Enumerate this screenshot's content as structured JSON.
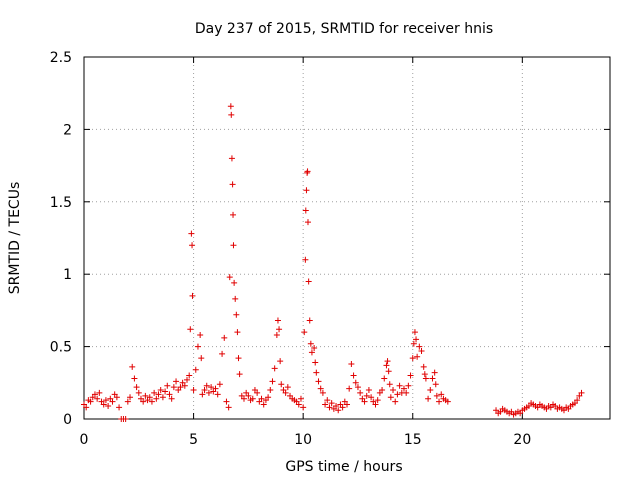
{
  "chart_data": {
    "type": "scatter",
    "title": "Day 237 of 2015, SRMTID for receiver hnis",
    "xlabel": "GPS time / hours",
    "ylabel": "SRMTID / TECUs",
    "xlim": [
      0,
      24
    ],
    "ylim": [
      0,
      2.5
    ],
    "grid": true,
    "marker": "+",
    "marker_color": "#e00000",
    "xticks": [
      0,
      5,
      10,
      15,
      20
    ],
    "xtick_labels": [
      "0",
      "5",
      "10",
      "15",
      "20"
    ],
    "yticks": [
      0,
      0.5,
      1,
      1.5,
      2,
      2.5
    ],
    "ytick_labels": [
      "0",
      "0.5",
      "1",
      "1.5",
      "2",
      "2.5"
    ],
    "series": [
      {
        "name": "SRMTID",
        "points": [
          [
            0.0,
            0.1
          ],
          [
            0.1,
            0.08
          ],
          [
            0.2,
            0.13
          ],
          [
            0.3,
            0.12
          ],
          [
            0.4,
            0.15
          ],
          [
            0.5,
            0.17
          ],
          [
            0.6,
            0.14
          ],
          [
            0.7,
            0.18
          ],
          [
            0.8,
            0.12
          ],
          [
            0.9,
            0.1
          ],
          [
            1.0,
            0.13
          ],
          [
            1.1,
            0.09
          ],
          [
            1.2,
            0.14
          ],
          [
            1.3,
            0.12
          ],
          [
            1.4,
            0.17
          ],
          [
            1.5,
            0.15
          ],
          [
            1.6,
            0.08
          ],
          [
            1.7,
            0.0
          ],
          [
            1.8,
            0.0
          ],
          [
            1.9,
            0.0
          ],
          [
            2.0,
            0.12
          ],
          [
            2.1,
            0.15
          ],
          [
            2.2,
            0.36
          ],
          [
            2.3,
            0.28
          ],
          [
            2.4,
            0.22
          ],
          [
            2.5,
            0.18
          ],
          [
            2.6,
            0.14
          ],
          [
            2.7,
            0.12
          ],
          [
            2.8,
            0.16
          ],
          [
            2.9,
            0.13
          ],
          [
            3.0,
            0.15
          ],
          [
            3.1,
            0.12
          ],
          [
            3.2,
            0.18
          ],
          [
            3.3,
            0.14
          ],
          [
            3.4,
            0.17
          ],
          [
            3.5,
            0.2
          ],
          [
            3.6,
            0.15
          ],
          [
            3.7,
            0.19
          ],
          [
            3.8,
            0.23
          ],
          [
            3.9,
            0.17
          ],
          [
            4.0,
            0.14
          ],
          [
            4.1,
            0.22
          ],
          [
            4.2,
            0.26
          ],
          [
            4.3,
            0.2
          ],
          [
            4.4,
            0.22
          ],
          [
            4.5,
            0.25
          ],
          [
            4.6,
            0.23
          ],
          [
            4.7,
            0.27
          ],
          [
            4.8,
            0.3
          ],
          [
            4.85,
            0.62
          ],
          [
            4.9,
            1.28
          ],
          [
            4.93,
            1.2
          ],
          [
            4.95,
            0.85
          ],
          [
            5.0,
            0.2
          ],
          [
            5.1,
            0.34
          ],
          [
            5.2,
            0.5
          ],
          [
            5.3,
            0.58
          ],
          [
            5.35,
            0.42
          ],
          [
            5.4,
            0.17
          ],
          [
            5.5,
            0.2
          ],
          [
            5.6,
            0.23
          ],
          [
            5.7,
            0.18
          ],
          [
            5.8,
            0.22
          ],
          [
            5.9,
            0.19
          ],
          [
            6.0,
            0.21
          ],
          [
            6.1,
            0.17
          ],
          [
            6.2,
            0.24
          ],
          [
            6.3,
            0.45
          ],
          [
            6.4,
            0.56
          ],
          [
            6.5,
            0.12
          ],
          [
            6.6,
            0.08
          ],
          [
            6.65,
            0.98
          ],
          [
            6.7,
            2.16
          ],
          [
            6.72,
            2.1
          ],
          [
            6.75,
            1.8
          ],
          [
            6.78,
            1.62
          ],
          [
            6.8,
            1.41
          ],
          [
            6.82,
            1.2
          ],
          [
            6.85,
            0.94
          ],
          [
            6.9,
            0.83
          ],
          [
            6.95,
            0.72
          ],
          [
            7.0,
            0.6
          ],
          [
            7.05,
            0.42
          ],
          [
            7.1,
            0.31
          ],
          [
            7.2,
            0.16
          ],
          [
            7.3,
            0.14
          ],
          [
            7.4,
            0.18
          ],
          [
            7.5,
            0.16
          ],
          [
            7.6,
            0.13
          ],
          [
            7.7,
            0.14
          ],
          [
            7.8,
            0.2
          ],
          [
            7.9,
            0.18
          ],
          [
            8.0,
            0.12
          ],
          [
            8.1,
            0.14
          ],
          [
            8.2,
            0.1
          ],
          [
            8.3,
            0.13
          ],
          [
            8.4,
            0.15
          ],
          [
            8.5,
            0.2
          ],
          [
            8.6,
            0.26
          ],
          [
            8.7,
            0.35
          ],
          [
            8.8,
            0.58
          ],
          [
            8.85,
            0.68
          ],
          [
            8.9,
            0.62
          ],
          [
            8.95,
            0.4
          ],
          [
            9.0,
            0.24
          ],
          [
            9.1,
            0.2
          ],
          [
            9.2,
            0.18
          ],
          [
            9.3,
            0.22
          ],
          [
            9.4,
            0.16
          ],
          [
            9.5,
            0.14
          ],
          [
            9.6,
            0.13
          ],
          [
            9.7,
            0.12
          ],
          [
            9.8,
            0.1
          ],
          [
            9.9,
            0.14
          ],
          [
            10.0,
            0.08
          ],
          [
            10.05,
            0.6
          ],
          [
            10.1,
            1.1
          ],
          [
            10.12,
            1.44
          ],
          [
            10.15,
            1.58
          ],
          [
            10.18,
            1.7
          ],
          [
            10.2,
            1.71
          ],
          [
            10.22,
            1.36
          ],
          [
            10.25,
            0.95
          ],
          [
            10.3,
            0.68
          ],
          [
            10.35,
            0.52
          ],
          [
            10.4,
            0.46
          ],
          [
            10.5,
            0.49
          ],
          [
            10.55,
            0.39
          ],
          [
            10.6,
            0.32
          ],
          [
            10.7,
            0.26
          ],
          [
            10.8,
            0.21
          ],
          [
            10.9,
            0.18
          ],
          [
            11.0,
            0.1
          ],
          [
            11.1,
            0.13
          ],
          [
            11.2,
            0.08
          ],
          [
            11.3,
            0.11
          ],
          [
            11.4,
            0.07
          ],
          [
            11.5,
            0.09
          ],
          [
            11.6,
            0.06
          ],
          [
            11.7,
            0.1
          ],
          [
            11.8,
            0.08
          ],
          [
            11.9,
            0.12
          ],
          [
            12.0,
            0.1
          ],
          [
            12.1,
            0.21
          ],
          [
            12.2,
            0.38
          ],
          [
            12.3,
            0.3
          ],
          [
            12.4,
            0.25
          ],
          [
            12.5,
            0.22
          ],
          [
            12.6,
            0.18
          ],
          [
            12.7,
            0.14
          ],
          [
            12.8,
            0.12
          ],
          [
            12.9,
            0.16
          ],
          [
            13.0,
            0.2
          ],
          [
            13.1,
            0.15
          ],
          [
            13.2,
            0.12
          ],
          [
            13.3,
            0.1
          ],
          [
            13.4,
            0.13
          ],
          [
            13.5,
            0.18
          ],
          [
            13.6,
            0.2
          ],
          [
            13.7,
            0.28
          ],
          [
            13.8,
            0.37
          ],
          [
            13.85,
            0.4
          ],
          [
            13.9,
            0.33
          ],
          [
            13.95,
            0.24
          ],
          [
            14.0,
            0.15
          ],
          [
            14.1,
            0.2
          ],
          [
            14.2,
            0.12
          ],
          [
            14.3,
            0.17
          ],
          [
            14.4,
            0.23
          ],
          [
            14.5,
            0.18
          ],
          [
            14.6,
            0.21
          ],
          [
            14.7,
            0.18
          ],
          [
            14.8,
            0.23
          ],
          [
            14.9,
            0.3
          ],
          [
            15.0,
            0.42
          ],
          [
            15.05,
            0.52
          ],
          [
            15.1,
            0.6
          ],
          [
            15.15,
            0.55
          ],
          [
            15.2,
            0.43
          ],
          [
            15.3,
            0.5
          ],
          [
            15.4,
            0.47
          ],
          [
            15.5,
            0.36
          ],
          [
            15.55,
            0.31
          ],
          [
            15.6,
            0.28
          ],
          [
            15.7,
            0.14
          ],
          [
            15.8,
            0.2
          ],
          [
            15.9,
            0.28
          ],
          [
            16.0,
            0.32
          ],
          [
            16.05,
            0.24
          ],
          [
            16.1,
            0.16
          ],
          [
            16.2,
            0.12
          ],
          [
            16.3,
            0.17
          ],
          [
            16.4,
            0.14
          ],
          [
            16.5,
            0.13
          ],
          [
            16.6,
            0.12
          ],
          [
            18.8,
            0.06
          ],
          [
            18.9,
            0.04
          ],
          [
            19.0,
            0.05
          ],
          [
            19.1,
            0.07
          ],
          [
            19.2,
            0.06
          ],
          [
            19.3,
            0.05
          ],
          [
            19.4,
            0.04
          ],
          [
            19.5,
            0.05
          ],
          [
            19.6,
            0.03
          ],
          [
            19.7,
            0.04
          ],
          [
            19.8,
            0.05
          ],
          [
            19.9,
            0.04
          ],
          [
            20.0,
            0.06
          ],
          [
            20.1,
            0.07
          ],
          [
            20.2,
            0.08
          ],
          [
            20.3,
            0.09
          ],
          [
            20.4,
            0.11
          ],
          [
            20.5,
            0.1
          ],
          [
            20.6,
            0.09
          ],
          [
            20.7,
            0.08
          ],
          [
            20.8,
            0.1
          ],
          [
            20.9,
            0.09
          ],
          [
            21.0,
            0.08
          ],
          [
            21.1,
            0.07
          ],
          [
            21.2,
            0.09
          ],
          [
            21.3,
            0.08
          ],
          [
            21.4,
            0.1
          ],
          [
            21.5,
            0.09
          ],
          [
            21.6,
            0.07
          ],
          [
            21.7,
            0.08
          ],
          [
            21.8,
            0.07
          ],
          [
            21.9,
            0.06
          ],
          [
            22.0,
            0.08
          ],
          [
            22.1,
            0.07
          ],
          [
            22.2,
            0.09
          ],
          [
            22.3,
            0.1
          ],
          [
            22.4,
            0.11
          ],
          [
            22.5,
            0.13
          ],
          [
            22.6,
            0.16
          ],
          [
            22.7,
            0.18
          ]
        ]
      }
    ]
  }
}
